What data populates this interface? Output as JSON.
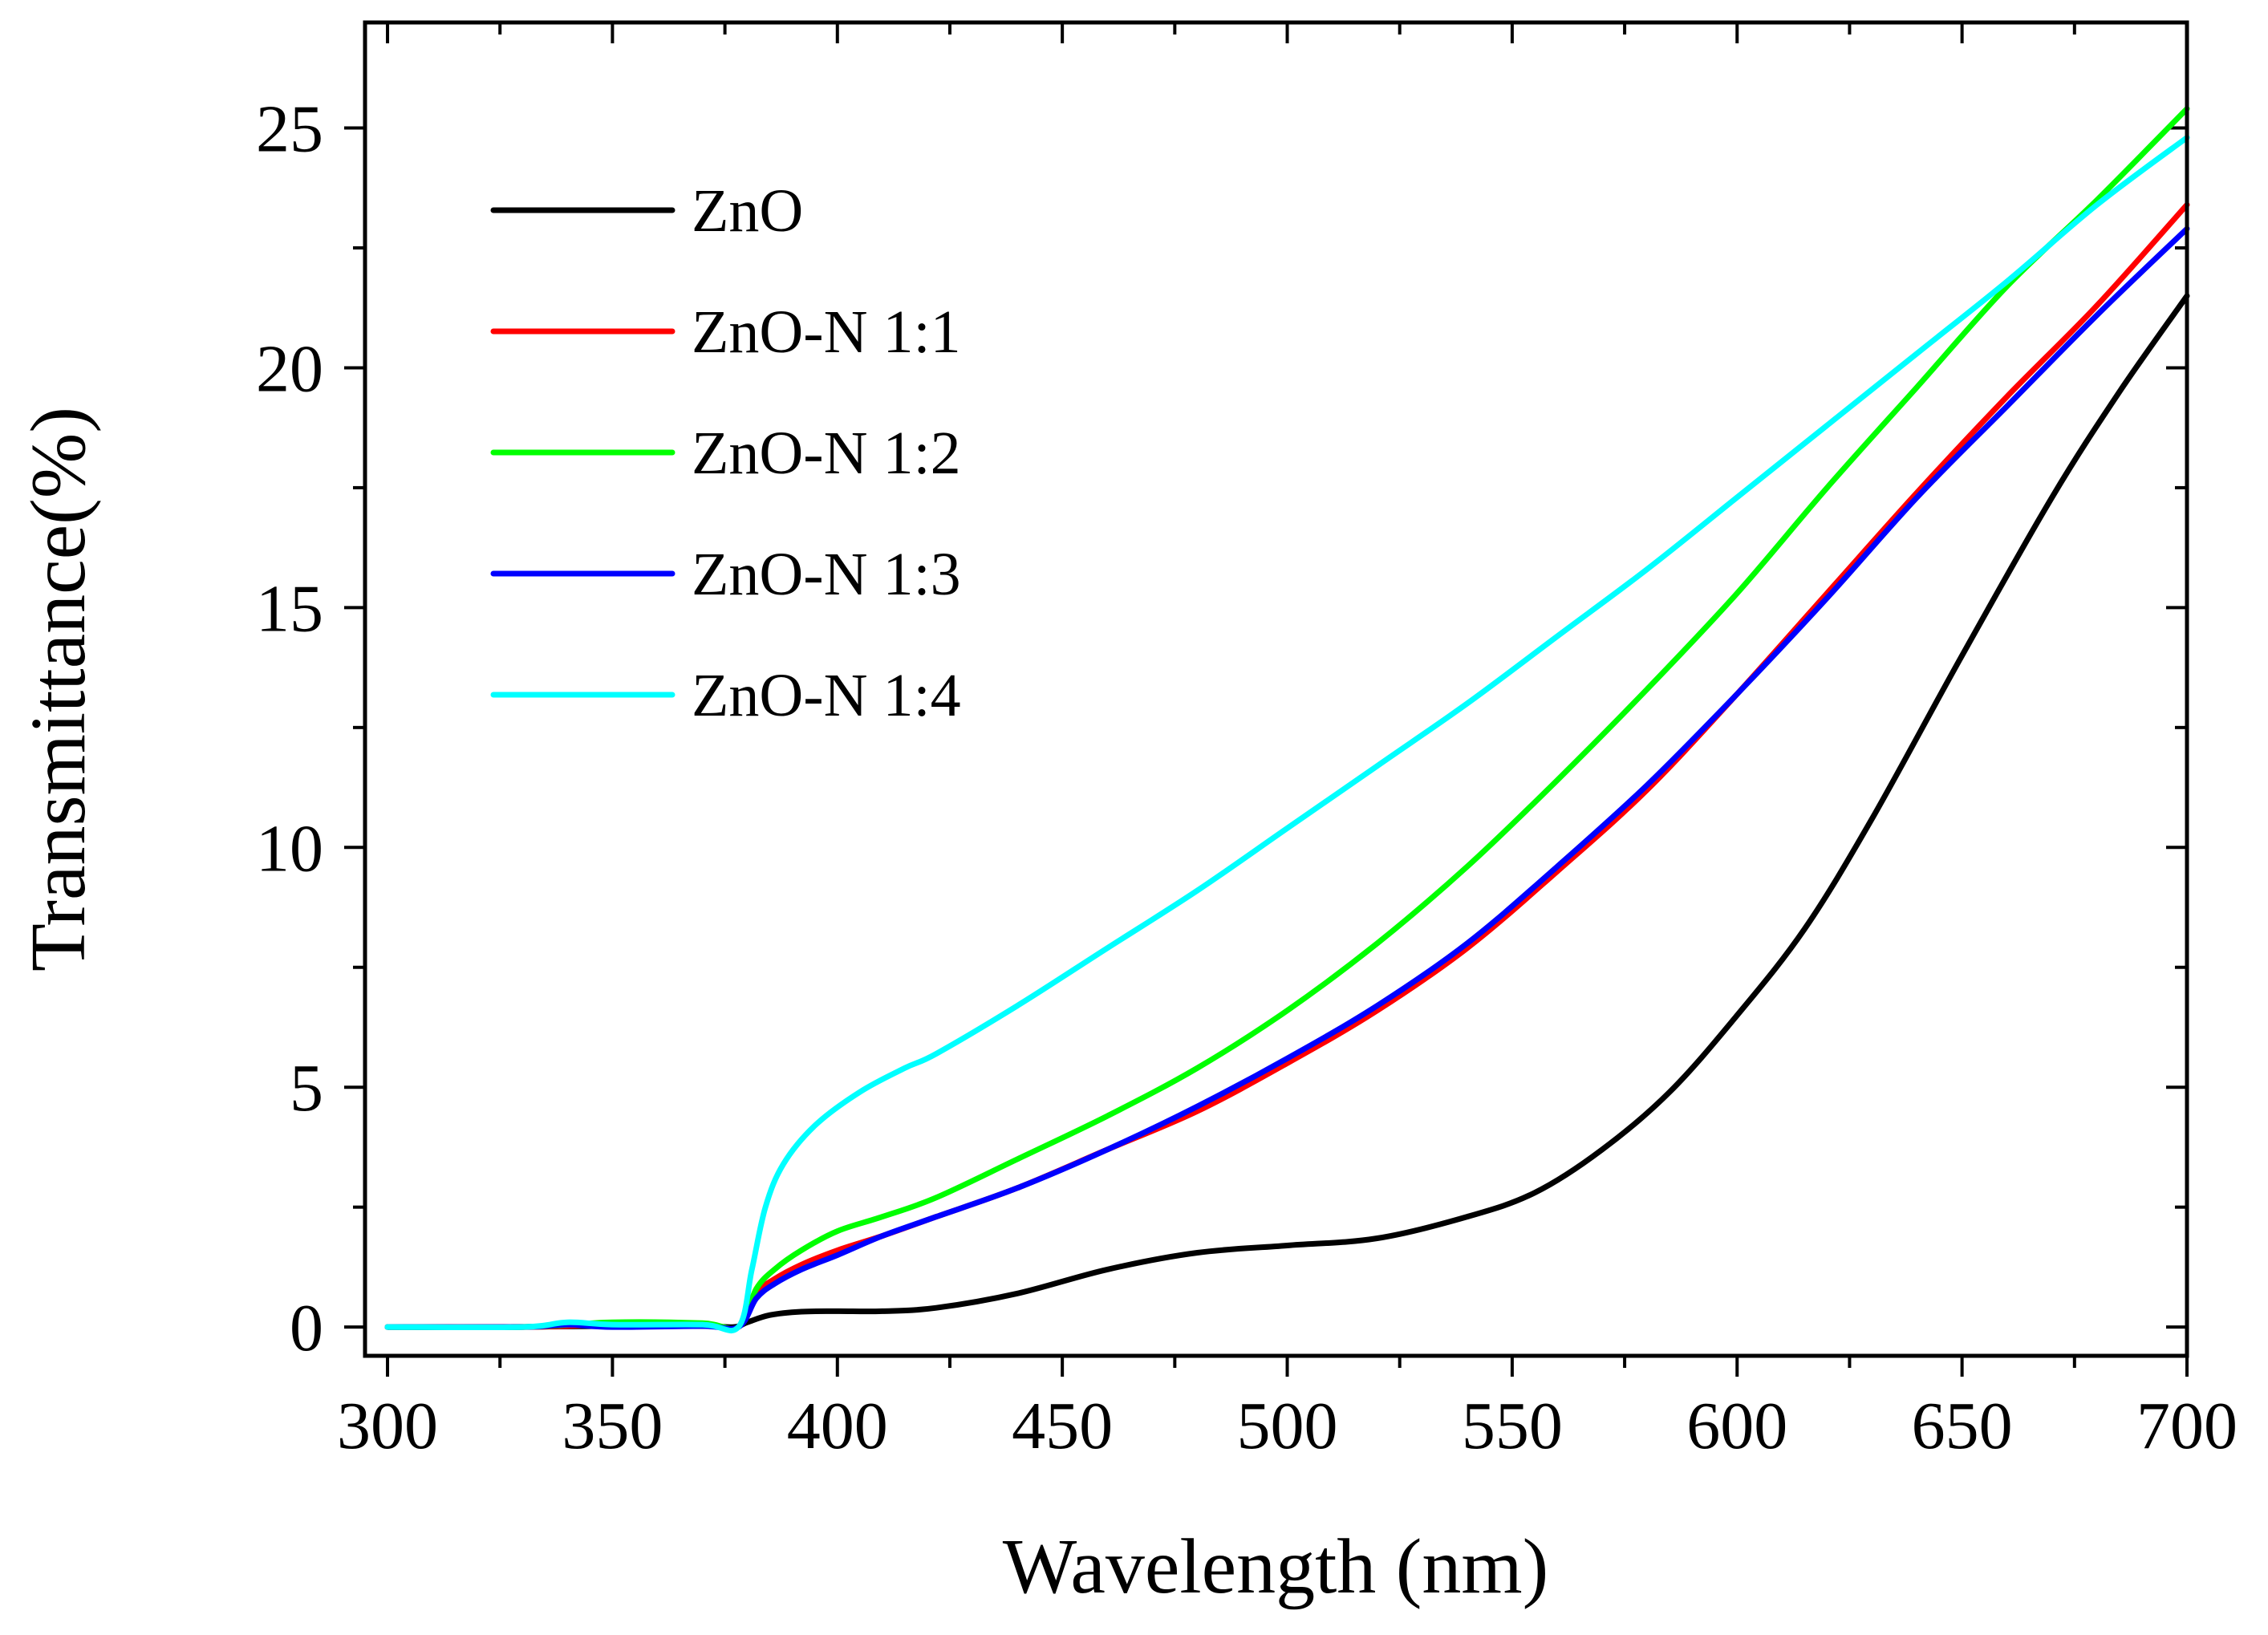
{
  "chart_data": {
    "type": "line",
    "xlabel": "Wavelength (nm)",
    "ylabel": "Transmittance(%)",
    "xlim": [
      295,
      700
    ],
    "ylim": [
      -0.6,
      27.2
    ],
    "xticks": [
      300,
      350,
      400,
      450,
      500,
      550,
      600,
      650,
      700
    ],
    "yticks": [
      0,
      5,
      10,
      15,
      20,
      25
    ],
    "legend_position": "top-left",
    "series": [
      {
        "name": "ZnO",
        "color": "#000000",
        "points": [
          [
            300,
            0
          ],
          [
            325,
            0
          ],
          [
            350,
            0.02
          ],
          [
            370,
            0.02
          ],
          [
            377,
            0
          ],
          [
            380,
            0.1
          ],
          [
            385,
            0.25
          ],
          [
            392,
            0.32
          ],
          [
            400,
            0.33
          ],
          [
            410,
            0.33
          ],
          [
            422,
            0.4
          ],
          [
            440,
            0.7
          ],
          [
            460,
            1.2
          ],
          [
            480,
            1.55
          ],
          [
            500,
            1.7
          ],
          [
            520,
            1.85
          ],
          [
            540,
            2.3
          ],
          [
            555,
            2.8
          ],
          [
            570,
            3.7
          ],
          [
            585,
            4.9
          ],
          [
            600,
            6.5
          ],
          [
            615,
            8.3
          ],
          [
            630,
            10.6
          ],
          [
            650,
            14.0
          ],
          [
            670,
            17.3
          ],
          [
            685,
            19.5
          ],
          [
            700,
            21.5
          ]
        ]
      },
      {
        "name": "ZnO-N 1:1",
        "color": "#ff0000",
        "points": [
          [
            300,
            0
          ],
          [
            330,
            0
          ],
          [
            350,
            0.05
          ],
          [
            370,
            0.05
          ],
          [
            378,
            0
          ],
          [
            382,
            0.7
          ],
          [
            386,
            1.0
          ],
          [
            392,
            1.3
          ],
          [
            400,
            1.6
          ],
          [
            410,
            1.9
          ],
          [
            422,
            2.3
          ],
          [
            440,
            2.9
          ],
          [
            460,
            3.7
          ],
          [
            480,
            4.5
          ],
          [
            500,
            5.5
          ],
          [
            520,
            6.6
          ],
          [
            540,
            7.9
          ],
          [
            560,
            9.5
          ],
          [
            580,
            11.2
          ],
          [
            600,
            13.2
          ],
          [
            620,
            15.3
          ],
          [
            640,
            17.4
          ],
          [
            660,
            19.4
          ],
          [
            680,
            21.3
          ],
          [
            700,
            23.4
          ]
        ]
      },
      {
        "name": "ZnO-N 1:2",
        "color": "#00ff00",
        "points": [
          [
            300,
            0
          ],
          [
            330,
            0
          ],
          [
            350,
            0.1
          ],
          [
            370,
            0.08
          ],
          [
            378,
            0
          ],
          [
            382,
            0.8
          ],
          [
            386,
            1.2
          ],
          [
            392,
            1.6
          ],
          [
            400,
            2.0
          ],
          [
            410,
            2.3
          ],
          [
            422,
            2.7
          ],
          [
            440,
            3.5
          ],
          [
            460,
            4.4
          ],
          [
            480,
            5.4
          ],
          [
            500,
            6.6
          ],
          [
            520,
            8.0
          ],
          [
            540,
            9.6
          ],
          [
            560,
            11.4
          ],
          [
            580,
            13.3
          ],
          [
            600,
            15.3
          ],
          [
            620,
            17.5
          ],
          [
            640,
            19.6
          ],
          [
            660,
            21.7
          ],
          [
            680,
            23.5
          ],
          [
            700,
            25.4
          ]
        ]
      },
      {
        "name": "ZnO-N 1:3",
        "color": "#0000ff",
        "points": [
          [
            300,
            0
          ],
          [
            330,
            0
          ],
          [
            340,
            0.05
          ],
          [
            350,
            0
          ],
          [
            370,
            0.02
          ],
          [
            378,
            0
          ],
          [
            382,
            0.6
          ],
          [
            386,
            0.9
          ],
          [
            392,
            1.2
          ],
          [
            400,
            1.5
          ],
          [
            410,
            1.9
          ],
          [
            422,
            2.3
          ],
          [
            440,
            2.9
          ],
          [
            460,
            3.7
          ],
          [
            480,
            4.6
          ],
          [
            500,
            5.6
          ],
          [
            520,
            6.7
          ],
          [
            540,
            8.0
          ],
          [
            560,
            9.6
          ],
          [
            580,
            11.3
          ],
          [
            600,
            13.2
          ],
          [
            620,
            15.2
          ],
          [
            640,
            17.3
          ],
          [
            660,
            19.2
          ],
          [
            680,
            21.1
          ],
          [
            700,
            22.9
          ]
        ]
      },
      {
        "name": "ZnO-N 1:4",
        "color": "#00ffff",
        "points": [
          [
            300,
            0
          ],
          [
            330,
            0
          ],
          [
            340,
            0.1
          ],
          [
            350,
            0.05
          ],
          [
            370,
            0.05
          ],
          [
            378,
            0
          ],
          [
            381,
            1.2
          ],
          [
            384,
            2.5
          ],
          [
            388,
            3.4
          ],
          [
            395,
            4.2
          ],
          [
            405,
            4.9
          ],
          [
            415,
            5.4
          ],
          [
            422,
            5.7
          ],
          [
            440,
            6.7
          ],
          [
            460,
            7.9
          ],
          [
            480,
            9.1
          ],
          [
            500,
            10.4
          ],
          [
            520,
            11.7
          ],
          [
            540,
            13.0
          ],
          [
            560,
            14.4
          ],
          [
            580,
            15.8
          ],
          [
            600,
            17.3
          ],
          [
            620,
            18.8
          ],
          [
            640,
            20.3
          ],
          [
            660,
            21.8
          ],
          [
            680,
            23.4
          ],
          [
            700,
            24.8
          ]
        ]
      }
    ]
  }
}
